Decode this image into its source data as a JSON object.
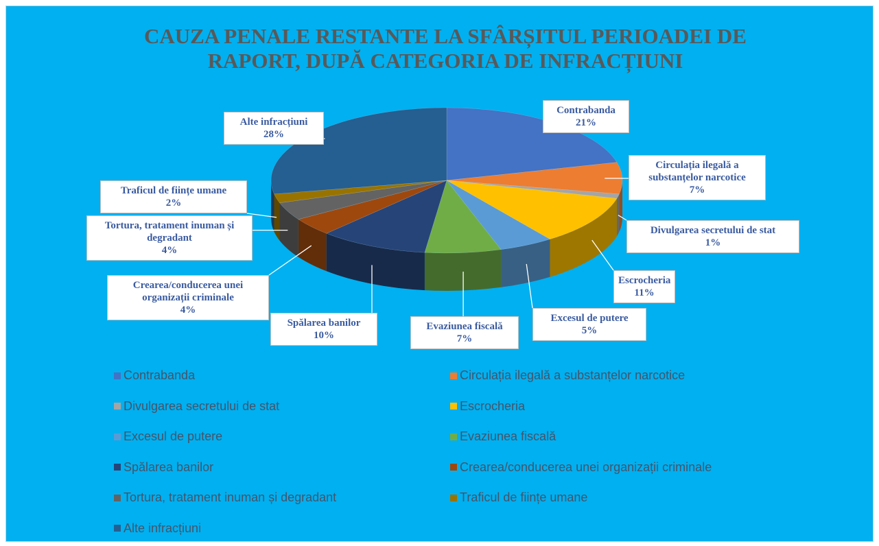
{
  "chart_data": {
    "type": "pie3d",
    "title": "CAUZA PENALE RESTANTE LA SFÂRȘITUL PERIOADEI DE RAPORT, DUPĂ CATEGORIA DE INFRACȚIUNI",
    "categories": [
      "Contrabanda",
      "Circulația ilegală a substanțelor narcotice",
      "Divulgarea secretului de stat",
      "Escrocheria",
      "Excesul de putere",
      "Evaziunea fiscală",
      "Spălarea banilor",
      "Crearea/conducerea unei organizații criminale",
      "Tortura, tratament inuman și degradant",
      "Traficul de ființe umane",
      "Alte infracțiuni"
    ],
    "values": [
      21,
      7,
      1,
      11,
      5,
      7,
      10,
      4,
      4,
      2,
      28
    ],
    "value_labels": [
      "21%",
      "7%",
      "1%",
      "11%",
      "5%",
      "7%",
      "10%",
      "4%",
      "4%",
      "2%",
      "28%"
    ],
    "colors": [
      "#4472c4",
      "#ed7d31",
      "#a5a5a5",
      "#ffc000",
      "#5b9bd5",
      "#70ad47",
      "#264478",
      "#9e480e",
      "#636363",
      "#997300",
      "#255e91"
    ],
    "legend": "bottom"
  }
}
